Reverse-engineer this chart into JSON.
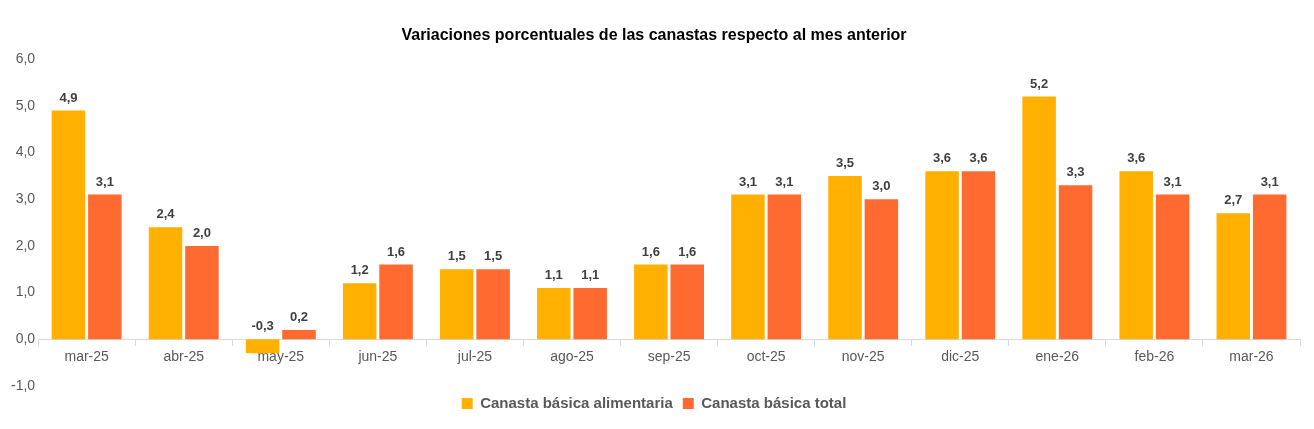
{
  "chart_data": {
    "type": "bar",
    "title": "Variaciones porcentuales de las canastas respecto al mes anterior",
    "categories": [
      "mar-25",
      "abr-25",
      "may-25",
      "jun-25",
      "jul-25",
      "ago-25",
      "sep-25",
      "oct-25",
      "nov-25",
      "dic-25",
      "ene-26",
      "feb-26",
      "mar-26"
    ],
    "series": [
      {
        "name": "Canasta básica alimentaria",
        "color": "#ffb000",
        "values": [
          4.9,
          2.4,
          -0.3,
          1.2,
          1.5,
          1.1,
          1.6,
          3.1,
          3.5,
          3.6,
          5.2,
          3.6,
          2.7
        ],
        "value_labels": [
          "4,9",
          "2,4",
          "-0,3",
          "1,2",
          "1,5",
          "1,1",
          "1,6",
          "3,1",
          "3,5",
          "3,6",
          "5,2",
          "3,6",
          "2,7"
        ]
      },
      {
        "name": "Canasta básica total",
        "color": "#ff6a30",
        "values": [
          3.1,
          2.0,
          0.2,
          1.6,
          1.5,
          1.1,
          1.6,
          3.1,
          3.0,
          3.6,
          3.3,
          3.1,
          3.1
        ],
        "value_labels": [
          "3,1",
          "2,0",
          "0,2",
          "1,6",
          "1,5",
          "1,1",
          "1,6",
          "3,1",
          "3,0",
          "3,6",
          "3,3",
          "3,1",
          "3,1"
        ]
      }
    ],
    "ylim": [
      -1,
      6
    ],
    "yticks": [
      {
        "value": -1,
        "label": "-1,0"
      },
      {
        "value": 0,
        "label": "0,0"
      },
      {
        "value": 1,
        "label": "1,0"
      },
      {
        "value": 2,
        "label": "2,0"
      },
      {
        "value": 3,
        "label": "3,0"
      },
      {
        "value": 4,
        "label": "4,0"
      },
      {
        "value": 5,
        "label": "5,0"
      },
      {
        "value": 6,
        "label": "6,0"
      }
    ],
    "grid": false,
    "legend": "bottom"
  }
}
